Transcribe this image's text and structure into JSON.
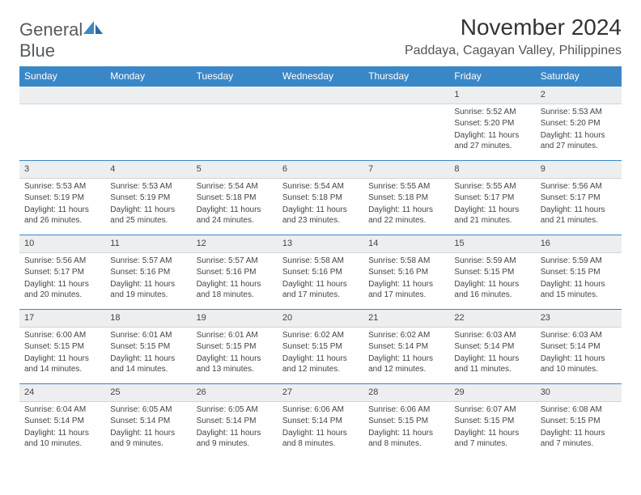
{
  "brand": {
    "text1": "General",
    "text2": "Blue"
  },
  "title": "November 2024",
  "location": "Paddaya, Cagayan Valley, Philippines",
  "colors": {
    "header_bg": "#3a87c8",
    "daynum_bg": "#eceef0",
    "border": "#3a87c8"
  },
  "day_names": [
    "Sunday",
    "Monday",
    "Tuesday",
    "Wednesday",
    "Thursday",
    "Friday",
    "Saturday"
  ],
  "weeks": [
    [
      {
        "n": "",
        "sr": "",
        "ss": "",
        "dl": ""
      },
      {
        "n": "",
        "sr": "",
        "ss": "",
        "dl": ""
      },
      {
        "n": "",
        "sr": "",
        "ss": "",
        "dl": ""
      },
      {
        "n": "",
        "sr": "",
        "ss": "",
        "dl": ""
      },
      {
        "n": "",
        "sr": "",
        "ss": "",
        "dl": ""
      },
      {
        "n": "1",
        "sr": "Sunrise: 5:52 AM",
        "ss": "Sunset: 5:20 PM",
        "dl": "Daylight: 11 hours and 27 minutes."
      },
      {
        "n": "2",
        "sr": "Sunrise: 5:53 AM",
        "ss": "Sunset: 5:20 PM",
        "dl": "Daylight: 11 hours and 27 minutes."
      }
    ],
    [
      {
        "n": "3",
        "sr": "Sunrise: 5:53 AM",
        "ss": "Sunset: 5:19 PM",
        "dl": "Daylight: 11 hours and 26 minutes."
      },
      {
        "n": "4",
        "sr": "Sunrise: 5:53 AM",
        "ss": "Sunset: 5:19 PM",
        "dl": "Daylight: 11 hours and 25 minutes."
      },
      {
        "n": "5",
        "sr": "Sunrise: 5:54 AM",
        "ss": "Sunset: 5:18 PM",
        "dl": "Daylight: 11 hours and 24 minutes."
      },
      {
        "n": "6",
        "sr": "Sunrise: 5:54 AM",
        "ss": "Sunset: 5:18 PM",
        "dl": "Daylight: 11 hours and 23 minutes."
      },
      {
        "n": "7",
        "sr": "Sunrise: 5:55 AM",
        "ss": "Sunset: 5:18 PM",
        "dl": "Daylight: 11 hours and 22 minutes."
      },
      {
        "n": "8",
        "sr": "Sunrise: 5:55 AM",
        "ss": "Sunset: 5:17 PM",
        "dl": "Daylight: 11 hours and 21 minutes."
      },
      {
        "n": "9",
        "sr": "Sunrise: 5:56 AM",
        "ss": "Sunset: 5:17 PM",
        "dl": "Daylight: 11 hours and 21 minutes."
      }
    ],
    [
      {
        "n": "10",
        "sr": "Sunrise: 5:56 AM",
        "ss": "Sunset: 5:17 PM",
        "dl": "Daylight: 11 hours and 20 minutes."
      },
      {
        "n": "11",
        "sr": "Sunrise: 5:57 AM",
        "ss": "Sunset: 5:16 PM",
        "dl": "Daylight: 11 hours and 19 minutes."
      },
      {
        "n": "12",
        "sr": "Sunrise: 5:57 AM",
        "ss": "Sunset: 5:16 PM",
        "dl": "Daylight: 11 hours and 18 minutes."
      },
      {
        "n": "13",
        "sr": "Sunrise: 5:58 AM",
        "ss": "Sunset: 5:16 PM",
        "dl": "Daylight: 11 hours and 17 minutes."
      },
      {
        "n": "14",
        "sr": "Sunrise: 5:58 AM",
        "ss": "Sunset: 5:16 PM",
        "dl": "Daylight: 11 hours and 17 minutes."
      },
      {
        "n": "15",
        "sr": "Sunrise: 5:59 AM",
        "ss": "Sunset: 5:15 PM",
        "dl": "Daylight: 11 hours and 16 minutes."
      },
      {
        "n": "16",
        "sr": "Sunrise: 5:59 AM",
        "ss": "Sunset: 5:15 PM",
        "dl": "Daylight: 11 hours and 15 minutes."
      }
    ],
    [
      {
        "n": "17",
        "sr": "Sunrise: 6:00 AM",
        "ss": "Sunset: 5:15 PM",
        "dl": "Daylight: 11 hours and 14 minutes."
      },
      {
        "n": "18",
        "sr": "Sunrise: 6:01 AM",
        "ss": "Sunset: 5:15 PM",
        "dl": "Daylight: 11 hours and 14 minutes."
      },
      {
        "n": "19",
        "sr": "Sunrise: 6:01 AM",
        "ss": "Sunset: 5:15 PM",
        "dl": "Daylight: 11 hours and 13 minutes."
      },
      {
        "n": "20",
        "sr": "Sunrise: 6:02 AM",
        "ss": "Sunset: 5:15 PM",
        "dl": "Daylight: 11 hours and 12 minutes."
      },
      {
        "n": "21",
        "sr": "Sunrise: 6:02 AM",
        "ss": "Sunset: 5:14 PM",
        "dl": "Daylight: 11 hours and 12 minutes."
      },
      {
        "n": "22",
        "sr": "Sunrise: 6:03 AM",
        "ss": "Sunset: 5:14 PM",
        "dl": "Daylight: 11 hours and 11 minutes."
      },
      {
        "n": "23",
        "sr": "Sunrise: 6:03 AM",
        "ss": "Sunset: 5:14 PM",
        "dl": "Daylight: 11 hours and 10 minutes."
      }
    ],
    [
      {
        "n": "24",
        "sr": "Sunrise: 6:04 AM",
        "ss": "Sunset: 5:14 PM",
        "dl": "Daylight: 11 hours and 10 minutes."
      },
      {
        "n": "25",
        "sr": "Sunrise: 6:05 AM",
        "ss": "Sunset: 5:14 PM",
        "dl": "Daylight: 11 hours and 9 minutes."
      },
      {
        "n": "26",
        "sr": "Sunrise: 6:05 AM",
        "ss": "Sunset: 5:14 PM",
        "dl": "Daylight: 11 hours and 9 minutes."
      },
      {
        "n": "27",
        "sr": "Sunrise: 6:06 AM",
        "ss": "Sunset: 5:14 PM",
        "dl": "Daylight: 11 hours and 8 minutes."
      },
      {
        "n": "28",
        "sr": "Sunrise: 6:06 AM",
        "ss": "Sunset: 5:15 PM",
        "dl": "Daylight: 11 hours and 8 minutes."
      },
      {
        "n": "29",
        "sr": "Sunrise: 6:07 AM",
        "ss": "Sunset: 5:15 PM",
        "dl": "Daylight: 11 hours and 7 minutes."
      },
      {
        "n": "30",
        "sr": "Sunrise: 6:08 AM",
        "ss": "Sunset: 5:15 PM",
        "dl": "Daylight: 11 hours and 7 minutes."
      }
    ]
  ]
}
